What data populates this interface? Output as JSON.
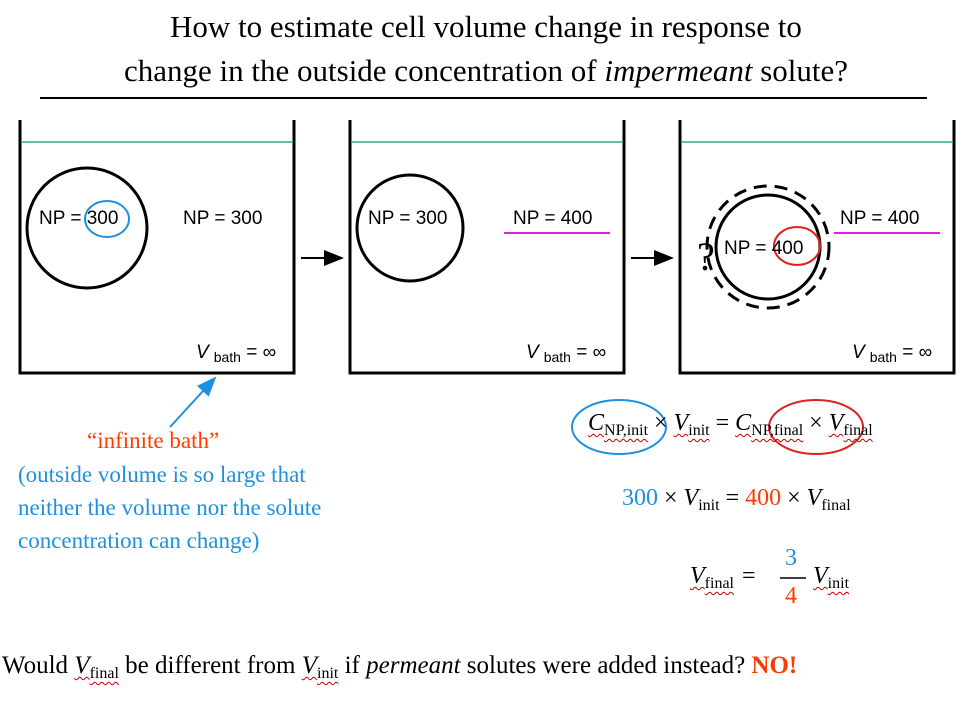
{
  "title": {
    "line1": "How to estimate cell volume change in response to",
    "line2_prefix": "change in the outside concentration of ",
    "line2_italic": "impermeant",
    "line2_suffix": " solute?"
  },
  "panels": [
    {
      "cell_label_prefix": "NP = ",
      "cell_value": "300",
      "bath_label": "NP = 300",
      "volume_label_prefix": "V",
      "volume_sub": "bath",
      "volume_value": " = ∞"
    },
    {
      "cell_label": "NP = 300",
      "bath_label": "NP = 400",
      "volume_label_prefix": "V",
      "volume_sub": "bath",
      "volume_value": " = ∞"
    },
    {
      "question_mark": "?",
      "cell_label_prefix": "NP = ",
      "cell_value": "400",
      "bath_label": "NP = 400",
      "volume_label_prefix": "V",
      "volume_sub": "bath",
      "volume_value": " = ∞"
    }
  ],
  "annotation": {
    "heading": "“infinite bath”",
    "line1": "(outside volume is so large that",
    "line2": "neither the volume nor the solute",
    "line3": "concentration can change)"
  },
  "equations": {
    "eq1": {
      "c": "C",
      "c_init_sub": "NP,init",
      "times": " × ",
      "v": "V",
      "init_sub": "init",
      "equals": " = ",
      "c_final_sub": "NP,final",
      "final_sub": "final"
    },
    "eq2": {
      "n300": "300",
      "times": " × ",
      "v": "V",
      "init_sub": "init",
      "equals": " = ",
      "n400": "400",
      "final_sub": "final"
    },
    "eq3": {
      "v": "V",
      "final_sub": "final",
      "equals": "=",
      "numerator": "3",
      "denominator": "4",
      "init_sub": "init"
    }
  },
  "question": {
    "part1": "Would ",
    "v": "V",
    "final_sub": "final",
    "part2": " be different from ",
    "init_sub": "init",
    "part3": " if ",
    "italic": "permeant",
    "part4": " solutes were added instead?  ",
    "answer": "NO!"
  },
  "colors": {
    "blue": "#1e90e0",
    "red": "#e02020",
    "orange_red": "#ff3c00",
    "magenta": "#e020e0",
    "teal": "#2aaa8a"
  }
}
